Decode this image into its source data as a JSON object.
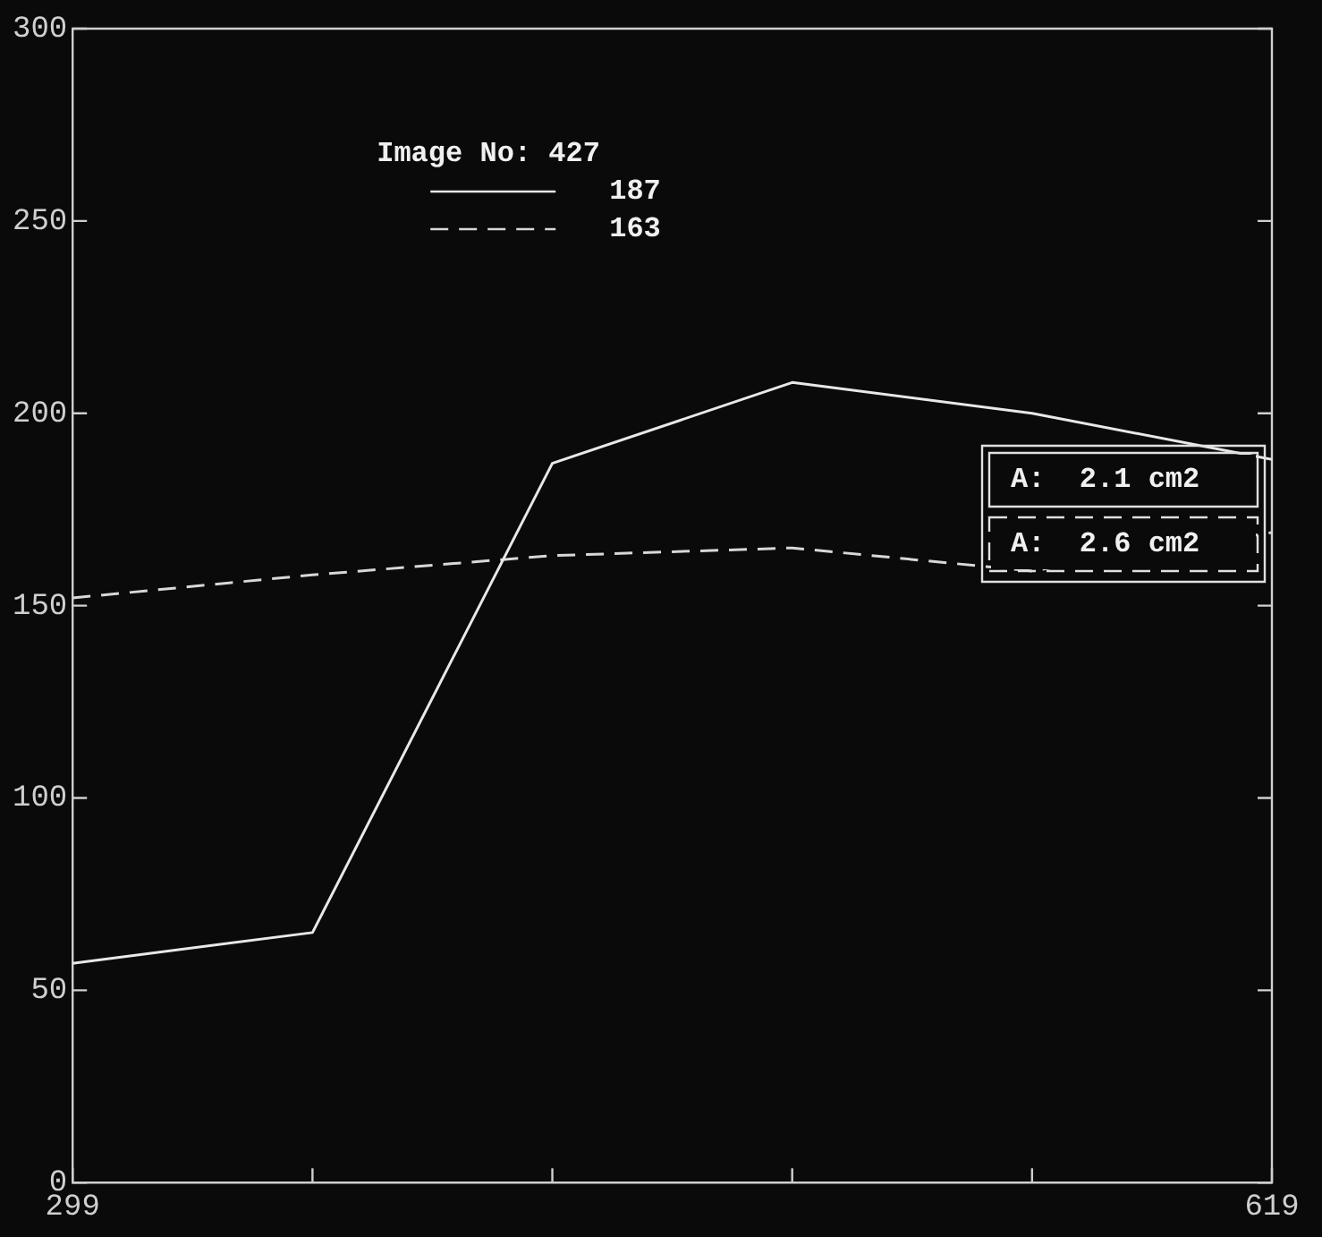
{
  "chart_data": {
    "type": "line",
    "legend_title": "Image No: 427",
    "legend": "top left",
    "grid": false,
    "marker": "none",
    "x": [
      299,
      363,
      427,
      491,
      555,
      619
    ],
    "xlim": [
      299,
      619
    ],
    "xticks": [
      299,
      {
        "value": 363,
        "label": null
      },
      {
        "value": 427,
        "label": null
      },
      {
        "value": 491,
        "label": null
      },
      {
        "value": 555,
        "label": null
      },
      619
    ],
    "ylim": [
      0,
      300
    ],
    "yticks": [
      0,
      50,
      100,
      150,
      200,
      250,
      300
    ],
    "series": [
      {
        "name": "187",
        "color": "#e8e8e8",
        "line_style": "solid",
        "values": [
          57,
          65,
          187,
          208,
          200,
          188
        ]
      },
      {
        "name": "163",
        "color": "#d8d8d8",
        "line_style": "dashed",
        "values": [
          152,
          158,
          163,
          165,
          159,
          169
        ]
      }
    ],
    "annotations": [
      "A:  2.1 cm2",
      "A:  2.6 cm2"
    ]
  }
}
